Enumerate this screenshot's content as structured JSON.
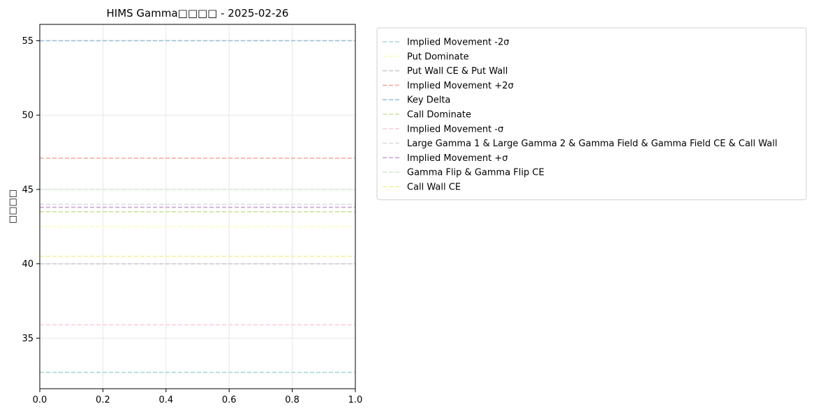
{
  "chart_data": {
    "type": "line",
    "title": "HIMS Gamma□□□□ - 2025-02-26",
    "xlabel": "",
    "ylabel": "□□□□",
    "xlim": [
      0.0,
      1.0
    ],
    "ylim": [
      31.6,
      56.1
    ],
    "x_ticks": [
      "0.0",
      "0.2",
      "0.4",
      "0.6",
      "0.8",
      "1.0"
    ],
    "y_ticks": [
      "35",
      "40",
      "45",
      "50",
      "55"
    ],
    "grid": true,
    "legend_position": "outside-upper-right",
    "series": [
      {
        "name": "Implied Movement -2σ",
        "value": 32.7,
        "color": "#a6d9d4"
      },
      {
        "name": "Put Dominate",
        "value": 42.5,
        "color": "#fbfbc6"
      },
      {
        "name": "Put Wall CE & Put Wall",
        "value": 40.0,
        "color": "#c9cad2"
      },
      {
        "name": "Implied Movement +2σ",
        "value": 47.1,
        "color": "#f6a99a"
      },
      {
        "name": "Key Delta",
        "value": 55.0,
        "color": "#9cc2d8"
      },
      {
        "name": "Call Dominate",
        "value": 43.5,
        "color": "#cce39a"
      },
      {
        "name": "Implied Movement -σ",
        "value": 35.9,
        "color": "#f9d0dc"
      },
      {
        "name": "Large Gamma 1 & Large Gamma 2 & Gamma Field & Gamma Field CE & Call Wall",
        "value": 44.0,
        "color": "#dcdce4"
      },
      {
        "name": "Implied Movement +σ",
        "value": 43.8,
        "color": "#c9a4d4"
      },
      {
        "name": "Gamma Flip & Gamma Flip CE",
        "value": 45.0,
        "color": "#d4ecd0"
      },
      {
        "name": "Call Wall CE",
        "value": 40.5,
        "color": "#f7f09a"
      }
    ]
  }
}
